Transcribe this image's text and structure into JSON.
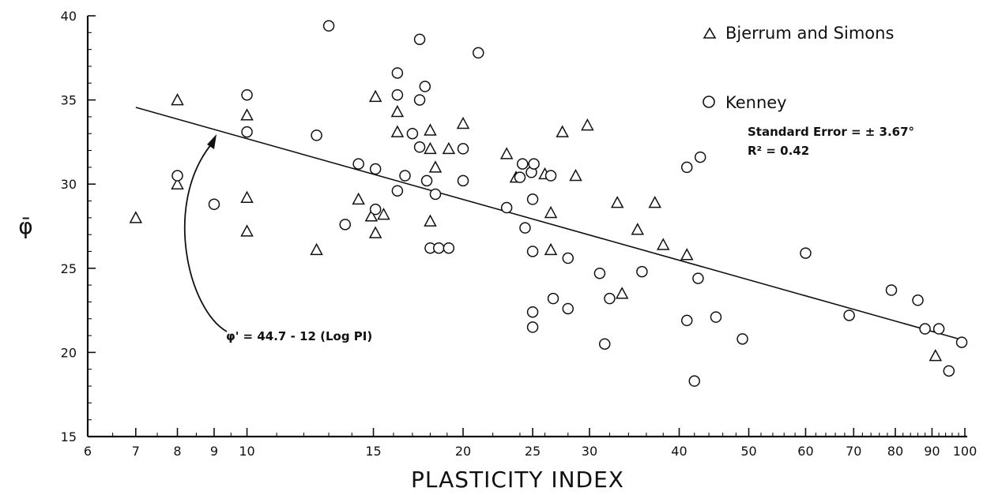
{
  "chart_data": {
    "type": "scatter",
    "xscale": "log",
    "xlim": [
      6,
      100
    ],
    "ylim": [
      15,
      40
    ],
    "xlabel": "PLASTICITY INDEX",
    "ylabel": "φ̄",
    "xticks": [
      "6",
      "7",
      "8",
      "9",
      "10",
      "15",
      "20",
      "25",
      "30",
      "40",
      "50",
      "60",
      "70",
      "80",
      "90",
      "100"
    ],
    "yticks": [
      "15",
      "20",
      "25",
      "30",
      "35",
      "40"
    ],
    "grid": false,
    "legend_position": "top-right",
    "series": [
      {
        "name": "Bjerrum and Simons",
        "marker": "triangle",
        "points": [
          [
            7,
            28.0
          ],
          [
            8,
            35.0
          ],
          [
            8,
            30.0
          ],
          [
            10,
            34.1
          ],
          [
            10,
            29.2
          ],
          [
            10,
            27.2
          ],
          [
            12.5,
            26.1
          ],
          [
            14.3,
            29.1
          ],
          [
            14.9,
            28.1
          ],
          [
            15.1,
            35.2
          ],
          [
            15.1,
            27.1
          ],
          [
            15.5,
            28.2
          ],
          [
            16.2,
            34.3
          ],
          [
            16.2,
            33.1
          ],
          [
            18.0,
            33.2
          ],
          [
            18.0,
            32.1
          ],
          [
            18.0,
            27.8
          ],
          [
            18.3,
            31.0
          ],
          [
            19.1,
            32.1
          ],
          [
            20.0,
            33.6
          ],
          [
            23.0,
            31.8
          ],
          [
            23.7,
            30.4
          ],
          [
            26.0,
            30.6
          ],
          [
            26.5,
            28.3
          ],
          [
            26.5,
            26.1
          ],
          [
            27.5,
            33.1
          ],
          [
            28.7,
            30.5
          ],
          [
            29.8,
            33.5
          ],
          [
            32.8,
            28.9
          ],
          [
            33.3,
            23.5
          ],
          [
            35.0,
            27.3
          ],
          [
            37.0,
            28.9
          ],
          [
            38.0,
            26.4
          ],
          [
            41.0,
            25.8
          ],
          [
            91.0,
            19.8
          ]
        ]
      },
      {
        "name": "Kenney",
        "marker": "circle",
        "points": [
          [
            8,
            30.5
          ],
          [
            9,
            28.8
          ],
          [
            10,
            35.3
          ],
          [
            10,
            33.1
          ],
          [
            12.5,
            32.9
          ],
          [
            13.0,
            39.4
          ],
          [
            13.7,
            27.6
          ],
          [
            14.3,
            31.2
          ],
          [
            15.1,
            30.9
          ],
          [
            15.1,
            28.5
          ],
          [
            16.2,
            36.6
          ],
          [
            16.2,
            35.3
          ],
          [
            16.2,
            29.6
          ],
          [
            16.6,
            30.5
          ],
          [
            17.0,
            33.0
          ],
          [
            17.4,
            38.6
          ],
          [
            17.4,
            35.0
          ],
          [
            17.4,
            32.2
          ],
          [
            17.7,
            35.8
          ],
          [
            17.8,
            30.2
          ],
          [
            18.0,
            26.2
          ],
          [
            18.3,
            29.4
          ],
          [
            18.5,
            26.2
          ],
          [
            19.1,
            26.2
          ],
          [
            20.0,
            32.1
          ],
          [
            20.0,
            30.2
          ],
          [
            21.0,
            37.8
          ],
          [
            23.0,
            28.6
          ],
          [
            24.0,
            30.4
          ],
          [
            24.2,
            31.2
          ],
          [
            24.4,
            27.4
          ],
          [
            24.9,
            30.7
          ],
          [
            25.0,
            29.1
          ],
          [
            25.0,
            26.0
          ],
          [
            25.0,
            22.4
          ],
          [
            25.0,
            21.5
          ],
          [
            25.1,
            31.2
          ],
          [
            26.5,
            30.5
          ],
          [
            26.7,
            23.2
          ],
          [
            28.0,
            25.6
          ],
          [
            28.0,
            22.6
          ],
          [
            31.0,
            24.7
          ],
          [
            31.5,
            20.5
          ],
          [
            32.0,
            23.2
          ],
          [
            35.5,
            24.8
          ],
          [
            41.0,
            31.0
          ],
          [
            41.0,
            21.9
          ],
          [
            42.0,
            18.3
          ],
          [
            42.5,
            24.4
          ],
          [
            42.8,
            31.6
          ],
          [
            45.0,
            22.1
          ],
          [
            49.0,
            20.8
          ],
          [
            60.0,
            25.9
          ],
          [
            69.0,
            22.2
          ],
          [
            79.0,
            23.7
          ],
          [
            86.0,
            23.1
          ],
          [
            88.0,
            21.4
          ],
          [
            92.0,
            21.4
          ],
          [
            95.0,
            18.9
          ],
          [
            99.0,
            20.6
          ]
        ]
      }
    ],
    "regression": {
      "label": "φ' = 44.7 - 12 (Log PI)",
      "x_from": 7,
      "x_to": 100,
      "intercept": 44.7,
      "slope_log10": -12
    },
    "annotations": {
      "standard_error": "Standard Error = ± 3.67°",
      "r_squared": "R² = 0.42"
    }
  },
  "colors": {
    "ink": "#111111",
    "background": "#ffffff"
  }
}
